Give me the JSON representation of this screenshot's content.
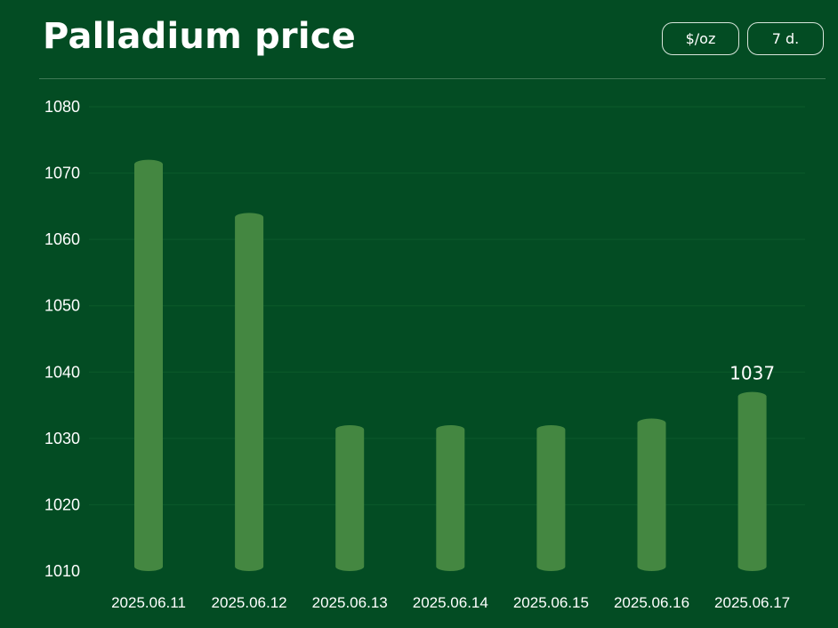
{
  "header": {
    "title": "Palladium price",
    "unit_button": "$/oz",
    "range_button": "7 d."
  },
  "colors": {
    "background": "#034c23",
    "bar": "#448741",
    "text": "#ffffff",
    "grid": "#0c5a2b"
  },
  "chart_data": {
    "type": "bar",
    "title": "Palladium price",
    "xlabel": "",
    "ylabel": "",
    "categories": [
      "2025.06.11",
      "2025.06.12",
      "2025.06.13",
      "2025.06.14",
      "2025.06.15",
      "2025.06.16",
      "2025.06.17"
    ],
    "values": [
      1072,
      1064,
      1032,
      1032,
      1032,
      1033,
      1037
    ],
    "ylim": [
      1010,
      1080
    ],
    "yticks": [
      1010,
      1020,
      1030,
      1040,
      1050,
      1060,
      1070,
      1080
    ],
    "data_labels": [
      {
        "category": "2025.06.17",
        "text": "1037"
      }
    ],
    "grid": true,
    "legend": "none"
  }
}
